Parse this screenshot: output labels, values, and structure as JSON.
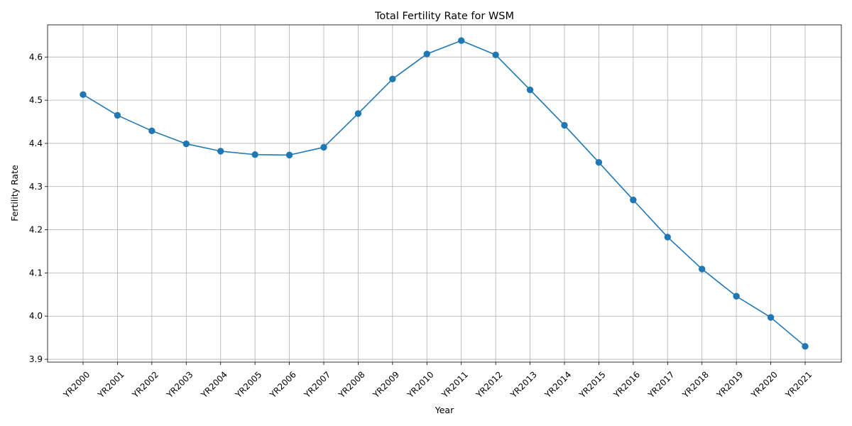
{
  "chart_data": {
    "type": "line",
    "title": "Total Fertility Rate for WSM",
    "xlabel": "Year",
    "ylabel": "Fertility Rate",
    "categories": [
      "YR2000",
      "YR2001",
      "YR2002",
      "YR2003",
      "YR2004",
      "YR2005",
      "YR2006",
      "YR2007",
      "YR2008",
      "YR2009",
      "YR2010",
      "YR2011",
      "YR2012",
      "YR2013",
      "YR2014",
      "YR2015",
      "YR2016",
      "YR2017",
      "YR2018",
      "YR2019",
      "YR2020",
      "YR2021"
    ],
    "series": [
      {
        "values": [
          4.513,
          4.465,
          4.429,
          4.399,
          4.382,
          4.374,
          4.373,
          4.391,
          4.469,
          4.549,
          4.607,
          4.638,
          4.605,
          4.524,
          4.442,
          4.356,
          4.269,
          4.183,
          4.109,
          4.046,
          3.997,
          3.93
        ],
        "color": "#1f77b4",
        "marker": "circle"
      }
    ],
    "yticks": [
      "3.9",
      "4.0",
      "4.1",
      "4.2",
      "4.3",
      "4.4",
      "4.5",
      "4.6"
    ],
    "ylim": [
      3.8935,
      4.6745
    ],
    "grid": true,
    "legend": "none",
    "xtick_rotation": 45
  }
}
